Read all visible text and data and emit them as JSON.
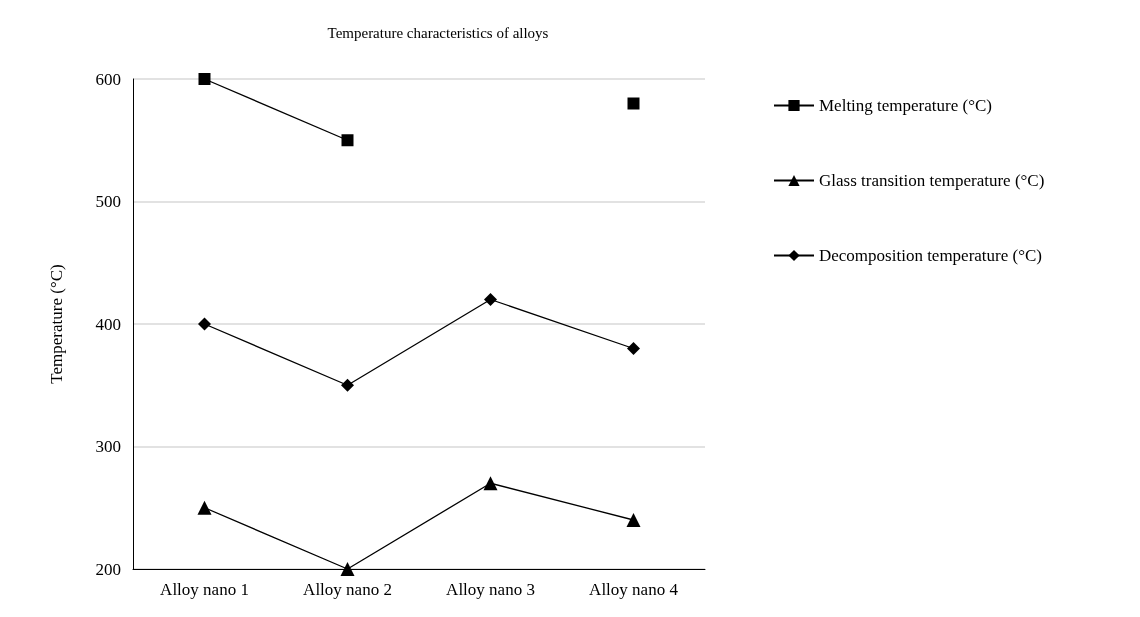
{
  "chart_data": {
    "type": "line",
    "title": "Temperature characteristics of alloys",
    "ylabel": "Temperature (°C)",
    "categories": [
      "Alloy nano 1",
      "Alloy nano 2",
      "Alloy nano 3",
      "Alloy nano 4"
    ],
    "series": [
      {
        "name": "Melting temperature (°C)",
        "color": "#000000",
        "marker": "square",
        "values": [
          600,
          550,
          null,
          580
        ]
      },
      {
        "name": "Glass transition temperature (°C)",
        "color": "#000000",
        "marker": "triangle",
        "values": [
          250,
          200,
          270,
          240
        ]
      },
      {
        "name": "Decomposition temperature (°C)",
        "color": "#000000",
        "marker": "diamond",
        "values": [
          400,
          350,
          420,
          380
        ]
      }
    ],
    "ylim": [
      200,
      600
    ],
    "yticks": [
      200,
      300,
      400,
      500,
      600
    ],
    "grid": "y",
    "legend": "right",
    "line_style": "solid"
  }
}
